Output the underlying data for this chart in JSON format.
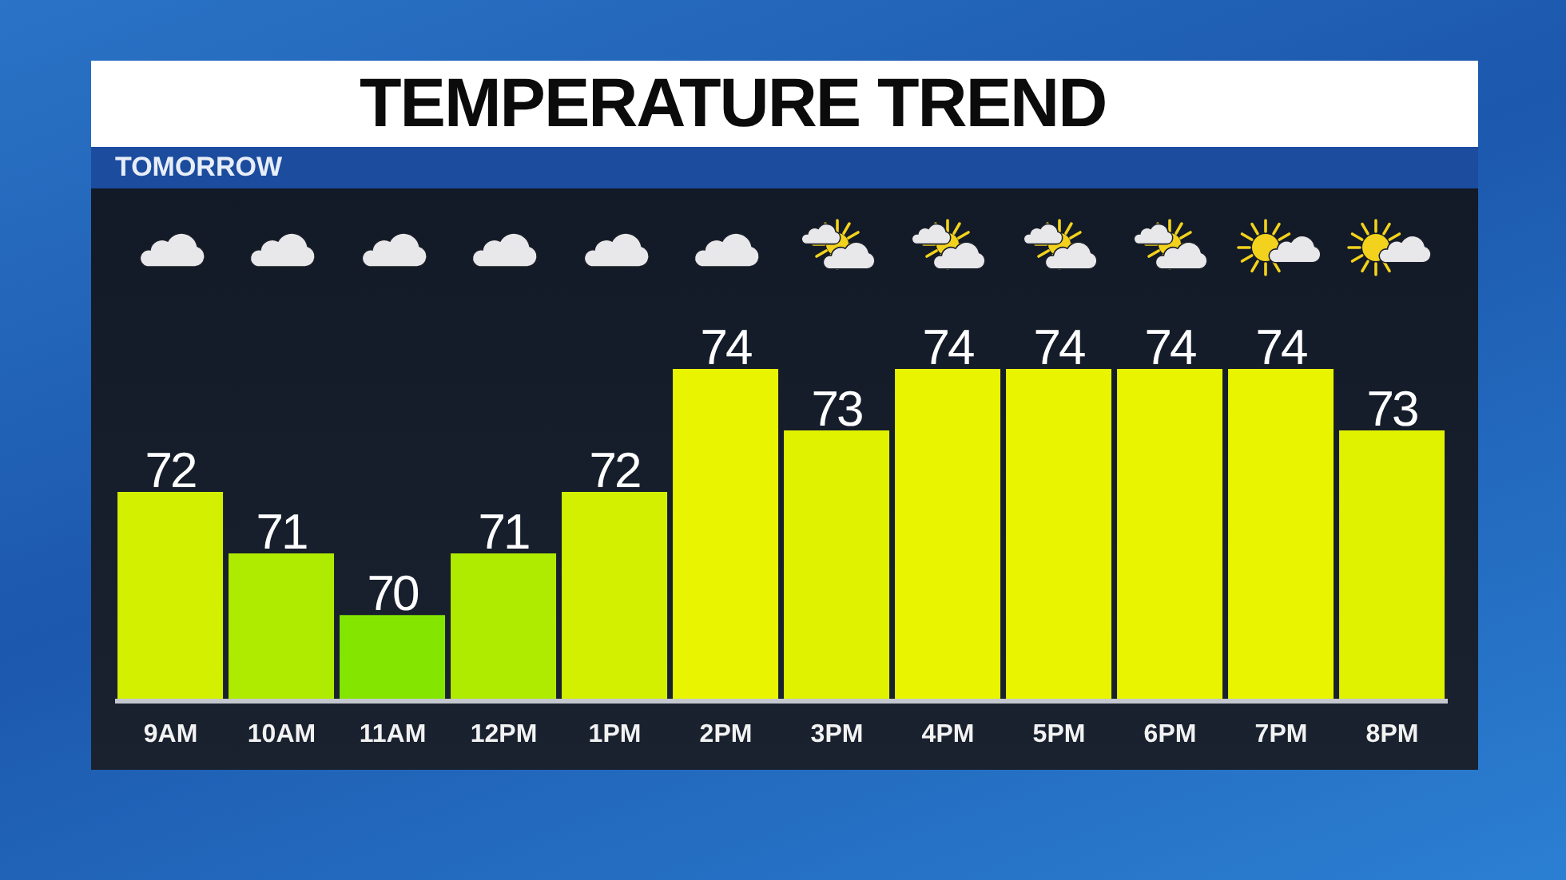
{
  "chart_data": {
    "type": "bar",
    "title": "TEMPERATURE TREND",
    "subtitle": "TOMORROW",
    "categories": [
      "9AM",
      "10AM",
      "11AM",
      "12PM",
      "1PM",
      "2PM",
      "3PM",
      "4PM",
      "5PM",
      "6PM",
      "7PM",
      "8PM"
    ],
    "values": [
      72,
      71,
      70,
      71,
      72,
      74,
      73,
      74,
      74,
      74,
      74,
      73
    ],
    "colors": [
      "#d2f000",
      "#aeeb00",
      "#84e600",
      "#aeeb00",
      "#d2f000",
      "#e8f400",
      "#e0f200",
      "#e8f400",
      "#e8f400",
      "#e8f400",
      "#e8f400",
      "#e0f200"
    ],
    "ylim": [
      68.6,
      74
    ],
    "data_labels": true,
    "tick_labels": "x"
  }
}
